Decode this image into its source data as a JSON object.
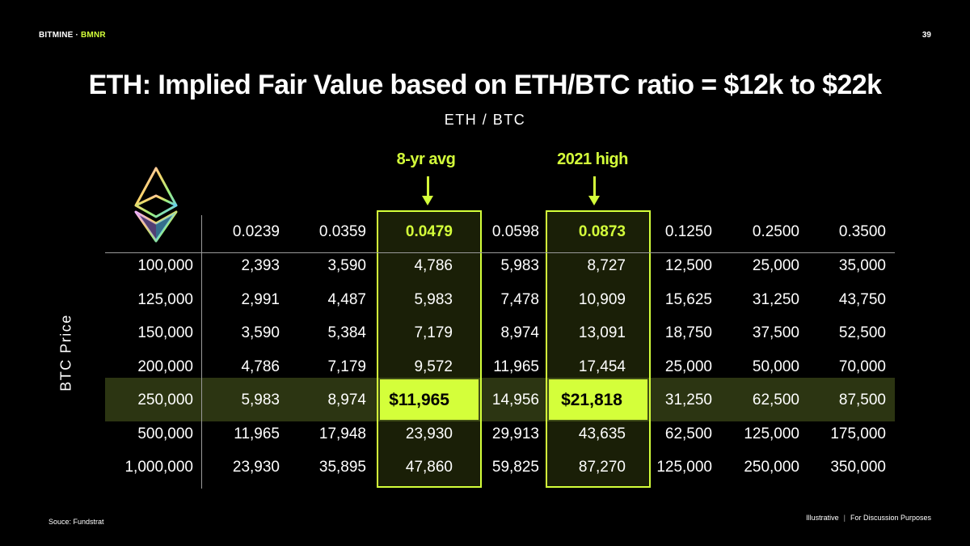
{
  "header": {
    "brand": "BITMINE · ",
    "ticker": "BMNR",
    "page_number": "39"
  },
  "title": "ETH: Implied Fair Value based on ETH/BTC ratio = $12k to $22k",
  "table": {
    "column_title": "ETH / BTC",
    "row_title": "BTC Price",
    "callouts": [
      {
        "label": "8-yr avg"
      },
      {
        "label": "2021 high"
      }
    ],
    "ratios": [
      "0.0239",
      "0.0359",
      "0.0479",
      "0.0598",
      "0.0873",
      "0.1250",
      "0.2500",
      "0.3500"
    ],
    "highlight_columns": [
      2,
      4
    ],
    "highlight_row": 4,
    "rows": [
      {
        "btc": "100,000",
        "values": [
          "2,393",
          "3,590",
          "4,786",
          "5,983",
          "8,727",
          "12,500",
          "25,000",
          "35,000"
        ]
      },
      {
        "btc": "125,000",
        "values": [
          "2,991",
          "4,487",
          "5,983",
          "7,478",
          "10,909",
          "15,625",
          "31,250",
          "43,750"
        ]
      },
      {
        "btc": "150,000",
        "values": [
          "3,590",
          "5,384",
          "7,179",
          "8,974",
          "13,091",
          "18,750",
          "37,500",
          "52,500"
        ]
      },
      {
        "btc": "200,000",
        "values": [
          "4,786",
          "7,179",
          "9,572",
          "11,965",
          "17,454",
          "25,000",
          "50,000",
          "70,000"
        ]
      },
      {
        "btc": "250,000",
        "values": [
          "5,983",
          "8,974",
          "$11,965",
          "14,956",
          "$21,818",
          "31,250",
          "62,500",
          "87,500"
        ]
      },
      {
        "btc": "500,000",
        "values": [
          "11,965",
          "17,948",
          "23,930",
          "29,913",
          "43,635",
          "62,500",
          "125,000",
          "175,000"
        ]
      },
      {
        "btc": "1,000,000",
        "values": [
          "23,930",
          "35,895",
          "47,860",
          "59,825",
          "87,270",
          "125,000",
          "250,000",
          "350,000"
        ]
      }
    ]
  },
  "colors": {
    "accent": "#d4ff3a",
    "background": "#000000",
    "highlight_row_bg": "#2c3512"
  },
  "icon": {
    "logo": "ethereum-icon"
  },
  "footer": {
    "source": "Souce: Fundstrat",
    "note_left": "Illustrative",
    "separator": "|",
    "note_right": "For Discussion Purposes"
  }
}
